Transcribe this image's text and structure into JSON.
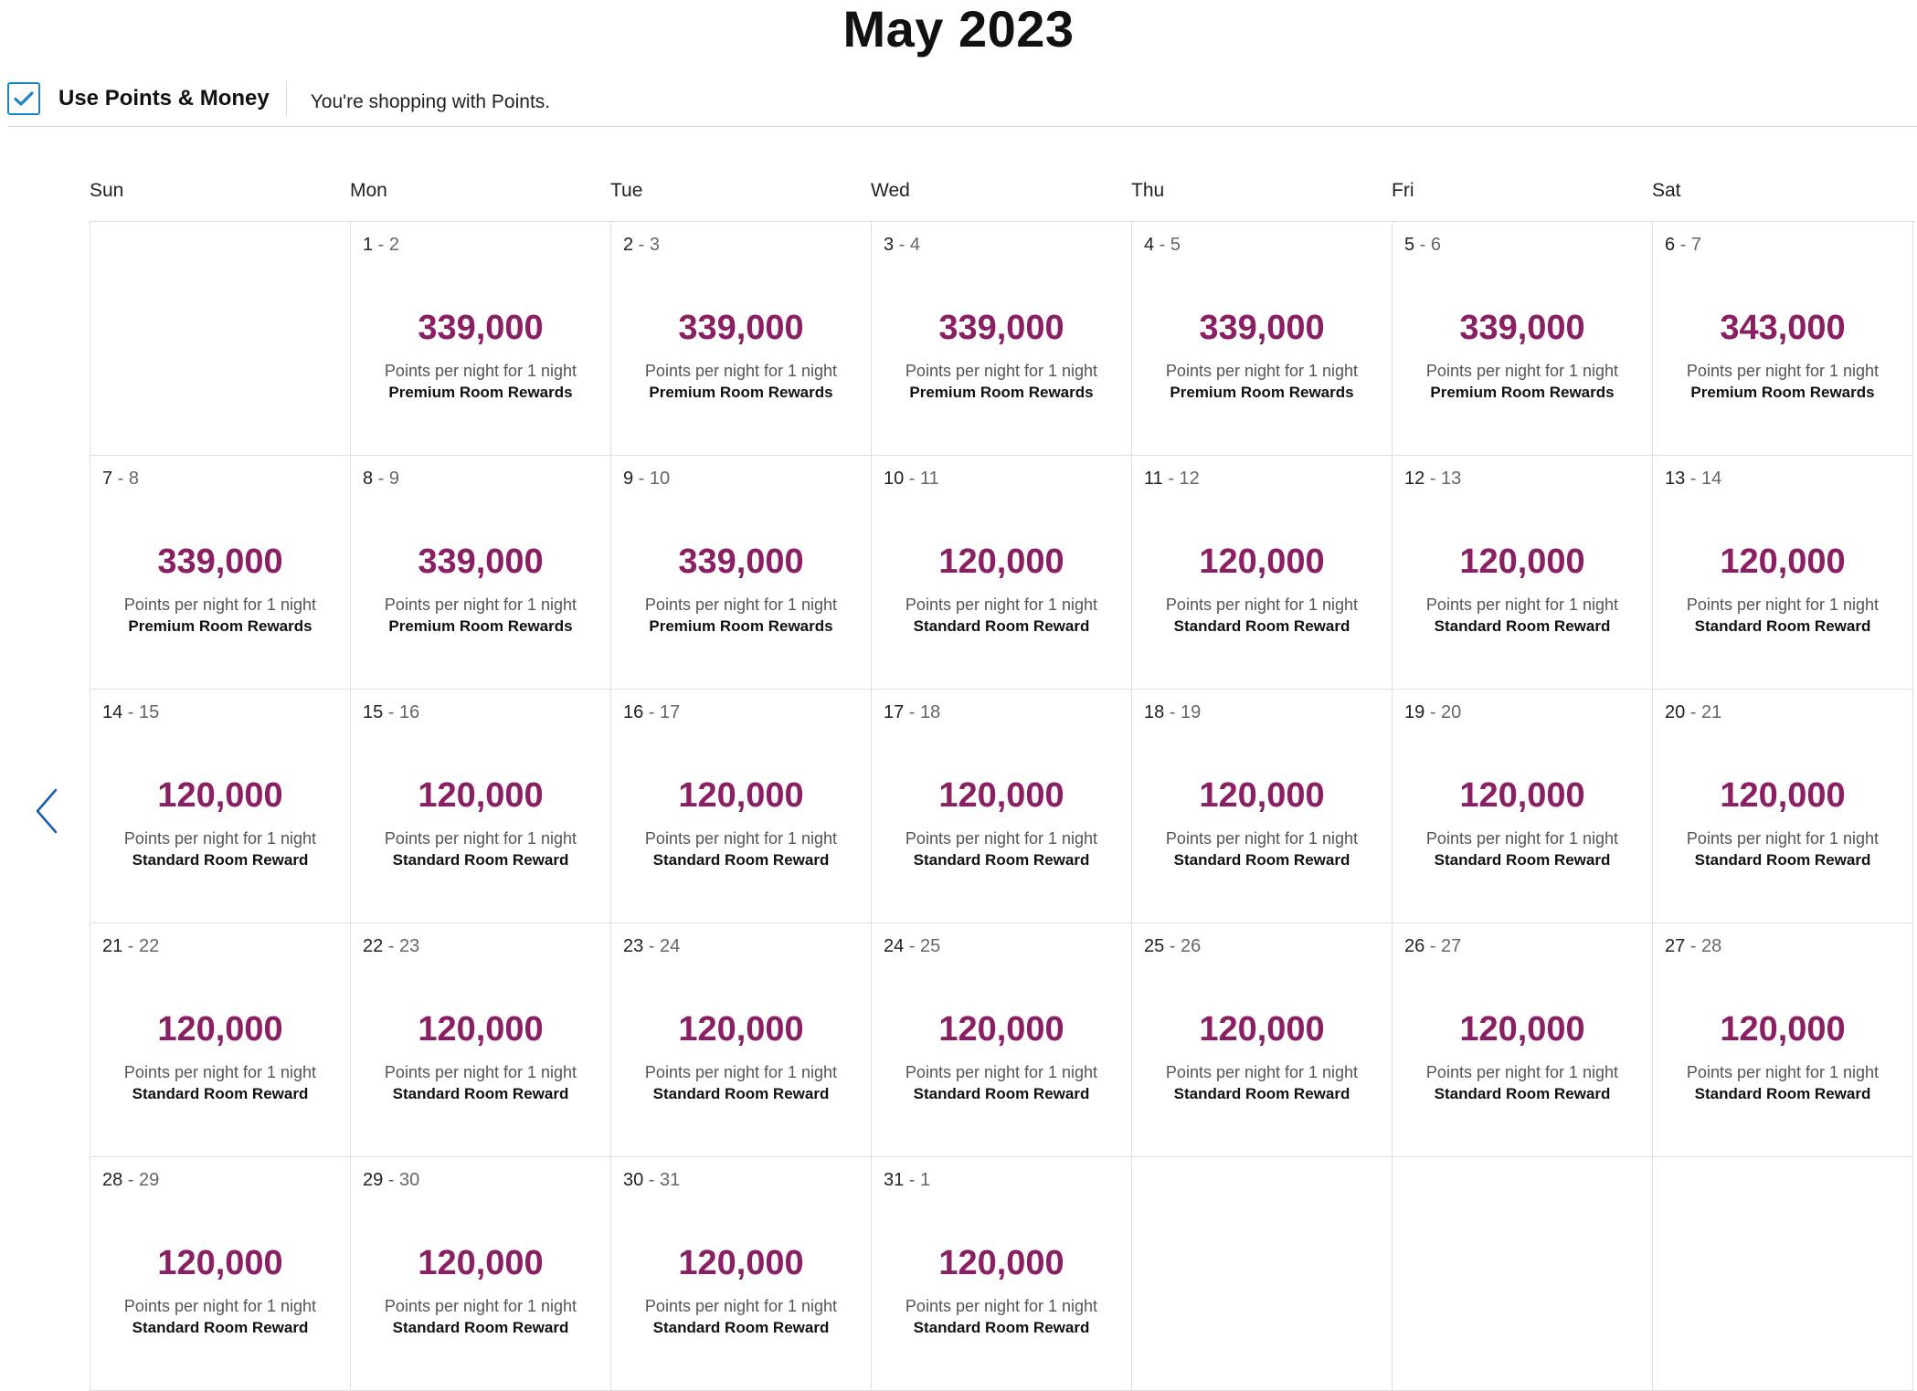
{
  "header": {
    "month_title": "May 2023"
  },
  "toolbar": {
    "use_points_money_label": "Use Points & Money",
    "use_points_money_checked": true,
    "shopping_note": "You're shopping with Points."
  },
  "colors": {
    "price": "#8a1f63",
    "checkbox": "#1a85c6",
    "arrow": "#1a5fa8"
  },
  "icons": {
    "checkbox": "checkmark-icon",
    "prev": "chevron-left-icon"
  },
  "calendar": {
    "weekdays": [
      "Sun",
      "Mon",
      "Tue",
      "Wed",
      "Thu",
      "Fri",
      "Sat"
    ],
    "cells": [
      {
        "empty": true
      },
      {
        "start": "1",
        "sep": " - ",
        "end": "2",
        "price": "339,000",
        "per_night": "Points per night for 1 night",
        "reward": "Premium Room Rewards"
      },
      {
        "start": "2",
        "sep": " - ",
        "end": "3",
        "price": "339,000",
        "per_night": "Points per night for 1 night",
        "reward": "Premium Room Rewards"
      },
      {
        "start": "3",
        "sep": " - ",
        "end": "4",
        "price": "339,000",
        "per_night": "Points per night for 1 night",
        "reward": "Premium Room Rewards"
      },
      {
        "start": "4",
        "sep": " - ",
        "end": "5",
        "price": "339,000",
        "per_night": "Points per night for 1 night",
        "reward": "Premium Room Rewards"
      },
      {
        "start": "5",
        "sep": " - ",
        "end": "6",
        "price": "339,000",
        "per_night": "Points per night for 1 night",
        "reward": "Premium Room Rewards"
      },
      {
        "start": "6",
        "sep": " - ",
        "end": "7",
        "price": "343,000",
        "per_night": "Points per night for 1 night",
        "reward": "Premium Room Rewards"
      },
      {
        "start": "7",
        "sep": " - ",
        "end": "8",
        "price": "339,000",
        "per_night": "Points per night for 1 night",
        "reward": "Premium Room Rewards"
      },
      {
        "start": "8",
        "sep": " - ",
        "end": "9",
        "price": "339,000",
        "per_night": "Points per night for 1 night",
        "reward": "Premium Room Rewards"
      },
      {
        "start": "9",
        "sep": " - ",
        "end": "10",
        "price": "339,000",
        "per_night": "Points per night for 1 night",
        "reward": "Premium Room Rewards"
      },
      {
        "start": "10",
        "sep": " - ",
        "end": "11",
        "price": "120,000",
        "per_night": "Points per night for 1 night",
        "reward": "Standard Room Reward"
      },
      {
        "start": "11",
        "sep": " - ",
        "end": "12",
        "price": "120,000",
        "per_night": "Points per night for 1 night",
        "reward": "Standard Room Reward"
      },
      {
        "start": "12",
        "sep": " - ",
        "end": "13",
        "price": "120,000",
        "per_night": "Points per night for 1 night",
        "reward": "Standard Room Reward"
      },
      {
        "start": "13",
        "sep": " - ",
        "end": "14",
        "price": "120,000",
        "per_night": "Points per night for 1 night",
        "reward": "Standard Room Reward"
      },
      {
        "start": "14",
        "sep": " - ",
        "end": "15",
        "price": "120,000",
        "per_night": "Points per night for 1 night",
        "reward": "Standard Room Reward"
      },
      {
        "start": "15",
        "sep": " - ",
        "end": "16",
        "price": "120,000",
        "per_night": "Points per night for 1 night",
        "reward": "Standard Room Reward"
      },
      {
        "start": "16",
        "sep": " - ",
        "end": "17",
        "price": "120,000",
        "per_night": "Points per night for 1 night",
        "reward": "Standard Room Reward"
      },
      {
        "start": "17",
        "sep": " - ",
        "end": "18",
        "price": "120,000",
        "per_night": "Points per night for 1 night",
        "reward": "Standard Room Reward"
      },
      {
        "start": "18",
        "sep": " - ",
        "end": "19",
        "price": "120,000",
        "per_night": "Points per night for 1 night",
        "reward": "Standard Room Reward"
      },
      {
        "start": "19",
        "sep": " - ",
        "end": "20",
        "price": "120,000",
        "per_night": "Points per night for 1 night",
        "reward": "Standard Room Reward"
      },
      {
        "start": "20",
        "sep": " - ",
        "end": "21",
        "price": "120,000",
        "per_night": "Points per night for 1 night",
        "reward": "Standard Room Reward"
      },
      {
        "start": "21",
        "sep": " - ",
        "end": "22",
        "price": "120,000",
        "per_night": "Points per night for 1 night",
        "reward": "Standard Room Reward"
      },
      {
        "start": "22",
        "sep": " - ",
        "end": "23",
        "price": "120,000",
        "per_night": "Points per night for 1 night",
        "reward": "Standard Room Reward"
      },
      {
        "start": "23",
        "sep": " - ",
        "end": "24",
        "price": "120,000",
        "per_night": "Points per night for 1 night",
        "reward": "Standard Room Reward"
      },
      {
        "start": "24",
        "sep": " - ",
        "end": "25",
        "price": "120,000",
        "per_night": "Points per night for 1 night",
        "reward": "Standard Room Reward"
      },
      {
        "start": "25",
        "sep": " - ",
        "end": "26",
        "price": "120,000",
        "per_night": "Points per night for 1 night",
        "reward": "Standard Room Reward"
      },
      {
        "start": "26",
        "sep": " - ",
        "end": "27",
        "price": "120,000",
        "per_night": "Points per night for 1 night",
        "reward": "Standard Room Reward"
      },
      {
        "start": "27",
        "sep": " - ",
        "end": "28",
        "price": "120,000",
        "per_night": "Points per night for 1 night",
        "reward": "Standard Room Reward"
      },
      {
        "start": "28",
        "sep": " - ",
        "end": "29",
        "price": "120,000",
        "per_night": "Points per night for 1 night",
        "reward": "Standard Room Reward"
      },
      {
        "start": "29",
        "sep": " - ",
        "end": "30",
        "price": "120,000",
        "per_night": "Points per night for 1 night",
        "reward": "Standard Room Reward"
      },
      {
        "start": "30",
        "sep": " - ",
        "end": "31",
        "price": "120,000",
        "per_night": "Points per night for 1 night",
        "reward": "Standard Room Reward"
      },
      {
        "start": "31",
        "sep": " - ",
        "end": "1",
        "price": "120,000",
        "per_night": "Points per night for 1 night",
        "reward": "Standard Room Reward"
      },
      {
        "empty": true
      },
      {
        "empty": true
      },
      {
        "empty": true
      }
    ]
  }
}
